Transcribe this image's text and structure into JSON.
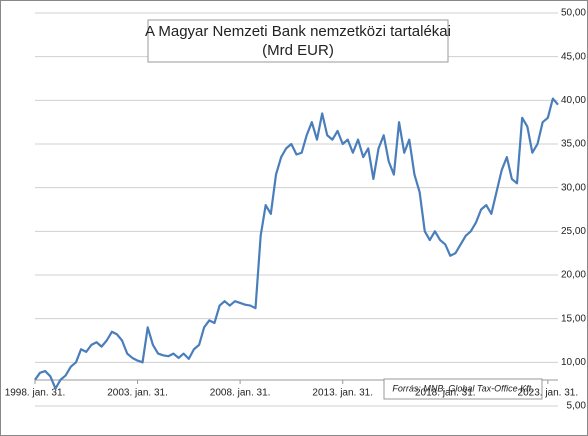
{
  "chart_data": {
    "type": "line",
    "title": "A Magyar Nemzeti Bank nemzetközi tartalékai",
    "subtitle": "(Mrd EUR)",
    "annotation": "Forrás: MNB, Global Tax-Office Kft.",
    "x": [
      "1998-01-31",
      "1998-04-30",
      "1998-07-31",
      "1998-10-31",
      "1999-01-31",
      "1999-04-30",
      "1999-07-31",
      "1999-10-31",
      "2000-01-31",
      "2000-04-30",
      "2000-07-31",
      "2000-10-31",
      "2001-01-31",
      "2001-04-30",
      "2001-07-31",
      "2001-10-31",
      "2002-01-31",
      "2002-04-30",
      "2002-07-31",
      "2002-10-31",
      "2003-01-31",
      "2003-04-30",
      "2003-07-31",
      "2003-10-31",
      "2004-01-31",
      "2004-04-30",
      "2004-07-31",
      "2004-10-31",
      "2005-01-31",
      "2005-04-30",
      "2005-07-31",
      "2005-10-31",
      "2006-01-31",
      "2006-04-30",
      "2006-07-31",
      "2006-10-31",
      "2007-01-31",
      "2007-04-30",
      "2007-07-31",
      "2007-10-31",
      "2008-01-31",
      "2008-04-30",
      "2008-07-31",
      "2008-10-31",
      "2009-01-31",
      "2009-04-30",
      "2009-07-31",
      "2009-10-31",
      "2010-01-31",
      "2010-04-30",
      "2010-07-31",
      "2010-10-31",
      "2011-01-31",
      "2011-04-30",
      "2011-07-31",
      "2011-10-31",
      "2012-01-31",
      "2012-04-30",
      "2012-07-31",
      "2012-10-31",
      "2013-01-31",
      "2013-04-30",
      "2013-07-31",
      "2013-10-31",
      "2014-01-31",
      "2014-04-30",
      "2014-07-31",
      "2014-10-31",
      "2015-01-31",
      "2015-04-30",
      "2015-07-31",
      "2015-10-31",
      "2016-01-31",
      "2016-04-30",
      "2016-07-31",
      "2016-10-31",
      "2017-01-31",
      "2017-04-30",
      "2017-07-31",
      "2017-10-31",
      "2018-01-31",
      "2018-04-30",
      "2018-07-31",
      "2018-10-31",
      "2019-01-31",
      "2019-04-30",
      "2019-07-31",
      "2019-10-31",
      "2020-01-31",
      "2020-04-30",
      "2020-07-31",
      "2020-10-31",
      "2021-01-31",
      "2021-04-30",
      "2021-07-31",
      "2021-10-31",
      "2022-01-31",
      "2022-04-30",
      "2022-07-31",
      "2022-10-31",
      "2023-01-31",
      "2023-04-30",
      "2023-07-31"
    ],
    "series": [
      {
        "color": "#4a7ebb",
        "values": [
          8.0,
          8.8,
          9.0,
          8.4,
          7.0,
          8.0,
          8.5,
          9.5,
          10.0,
          11.5,
          11.2,
          12.0,
          12.3,
          11.8,
          12.5,
          13.5,
          13.2,
          12.5,
          11.0,
          10.5,
          10.2,
          10.0,
          14.0,
          12.0,
          11.0,
          10.8,
          10.7,
          11.0,
          10.5,
          11.0,
          10.4,
          11.5,
          12.0,
          14.0,
          14.8,
          14.5,
          16.5,
          17.0,
          16.5,
          17.0,
          16.8,
          16.6,
          16.5,
          16.2,
          24.5,
          28.0,
          27.0,
          31.5,
          33.5,
          34.5,
          35.0,
          33.8,
          34.0,
          36.0,
          37.5,
          35.5,
          38.5,
          36.0,
          35.5,
          36.5,
          35.0,
          35.5,
          34.0,
          35.5,
          33.5,
          34.5,
          31.0,
          34.5,
          36.0,
          33.0,
          31.5,
          37.5,
          34.0,
          35.5,
          31.5,
          29.5,
          25.0,
          24.0,
          25.0,
          24.0,
          23.5,
          22.2,
          22.5,
          23.5,
          24.5,
          25.0,
          26.0,
          27.5,
          28.0,
          27.0,
          29.5,
          32.0,
          33.5,
          31.0,
          30.5,
          38.0,
          37.0,
          34.0,
          35.0,
          37.5,
          38.0,
          40.2,
          39.5
        ]
      }
    ],
    "xlim": [
      "1998-01-31",
      "2023-07-31"
    ],
    "xticks": [
      {
        "value": "1998-01-31",
        "label": "1998. jan. 31."
      },
      {
        "value": "2003-01-31",
        "label": "2003. jan. 31."
      },
      {
        "value": "2008-01-31",
        "label": "2008. jan. 31."
      },
      {
        "value": "2013-01-31",
        "label": "2013. jan. 31."
      },
      {
        "value": "2018-01-31",
        "label": "2018. jan. 31."
      },
      {
        "value": "2023-01-31",
        "label": "2023. jan. 31."
      }
    ],
    "ylim": [
      5,
      50
    ],
    "yticks": [
      {
        "value": 5,
        "label": "5,00"
      },
      {
        "value": 10,
        "label": "10,00"
      },
      {
        "value": 15,
        "label": "15,00"
      },
      {
        "value": 20,
        "label": "20,00"
      },
      {
        "value": 25,
        "label": "25,00"
      },
      {
        "value": 30,
        "label": "30,00"
      },
      {
        "value": 35,
        "label": "35,00"
      },
      {
        "value": 40,
        "label": "40,00"
      },
      {
        "value": 45,
        "label": "45,00"
      },
      {
        "value": 50,
        "label": "50,00"
      }
    ],
    "grid": true
  }
}
